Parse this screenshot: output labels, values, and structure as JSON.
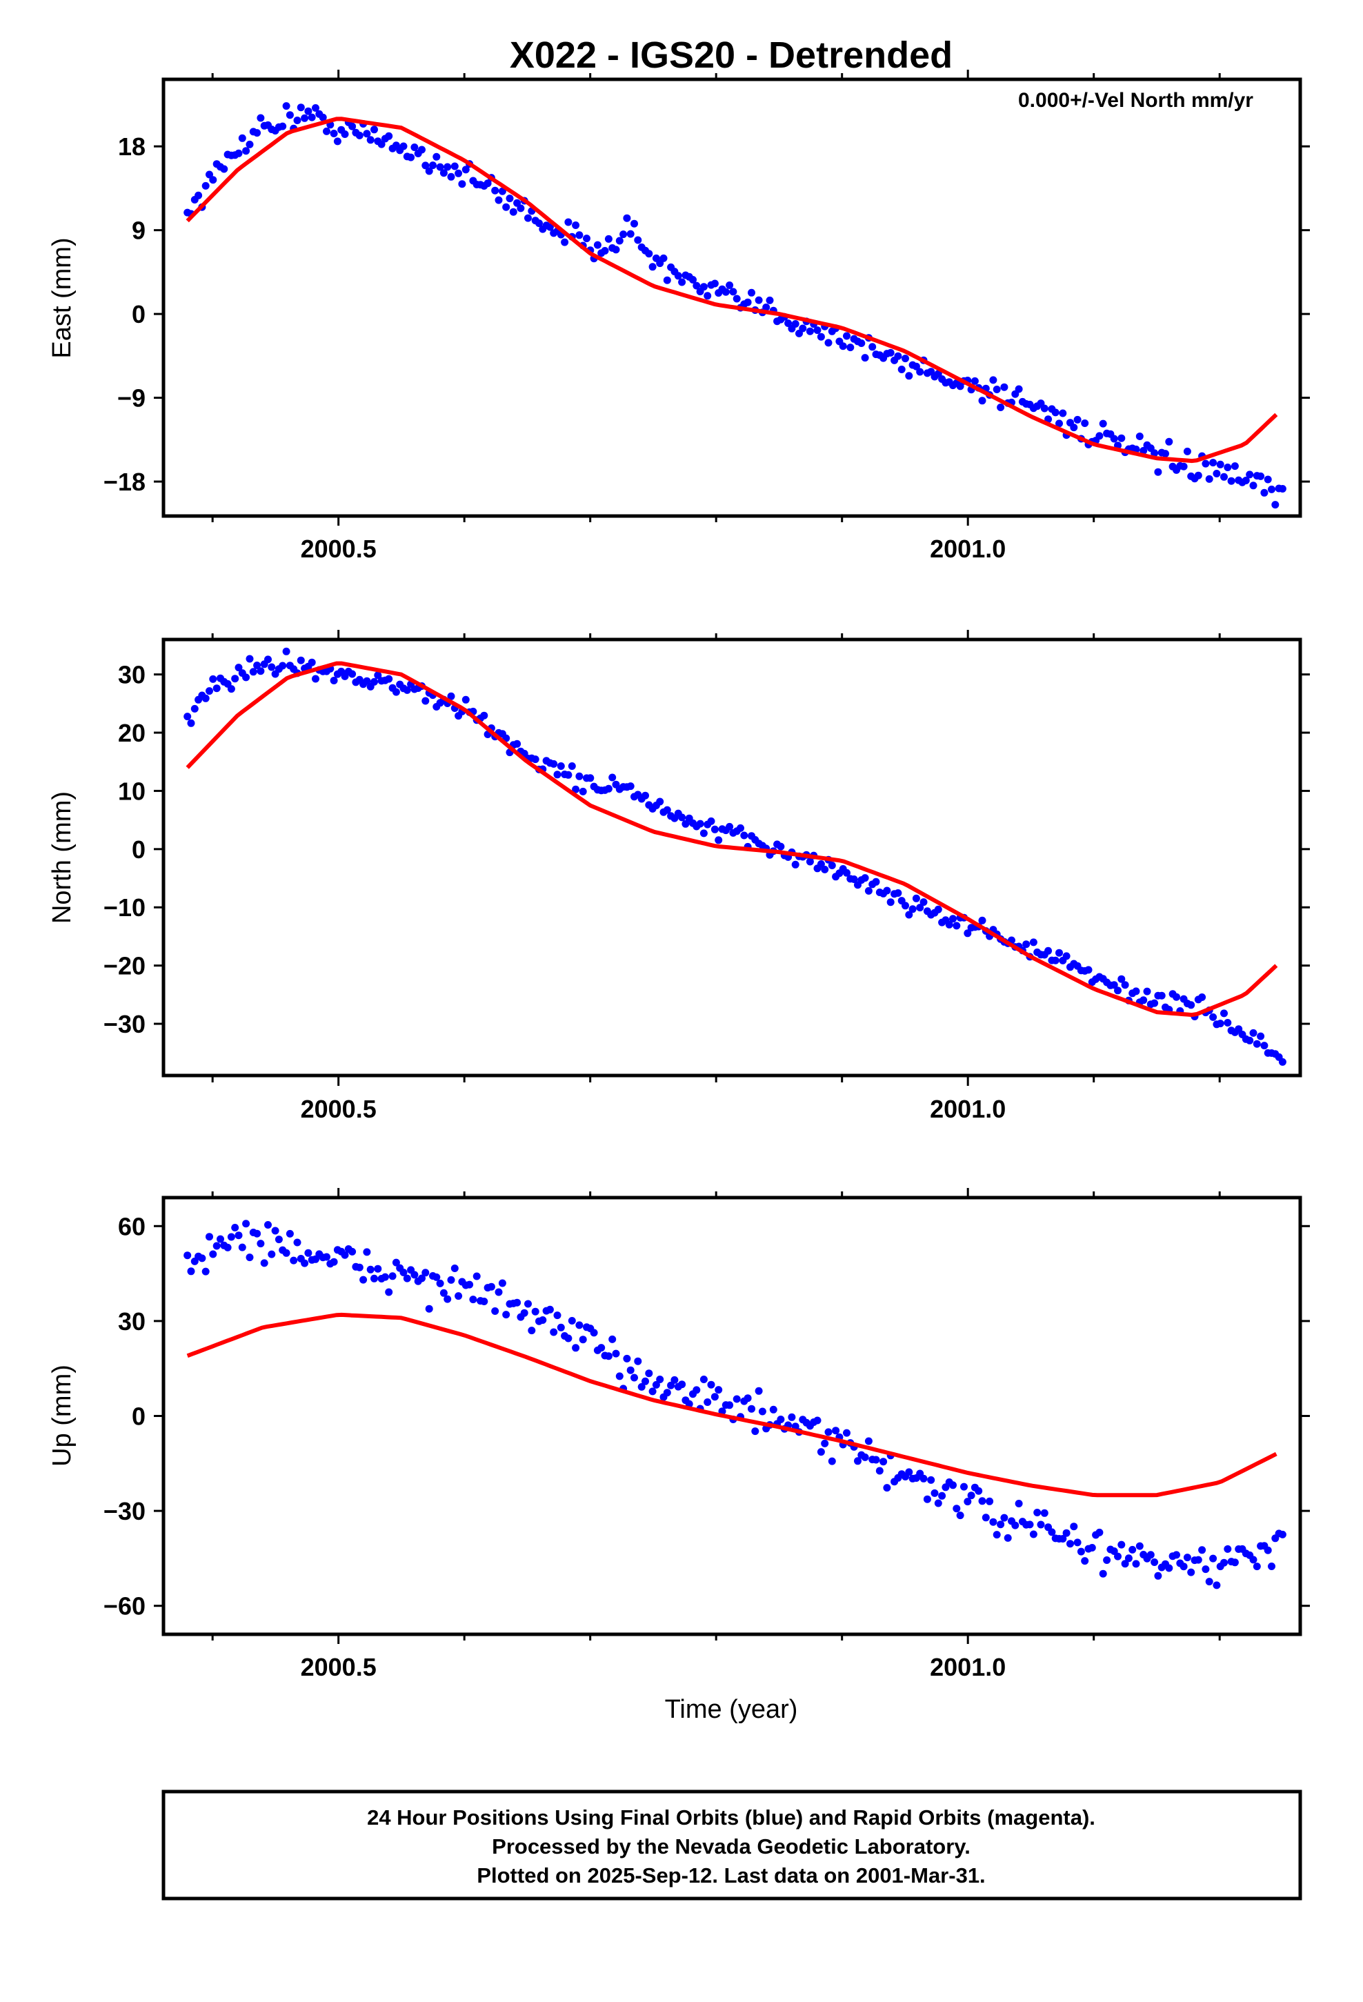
{
  "title": "X022 - IGS20 - Detrended",
  "xlabel": "Time (year)",
  "footer": [
    "24 Hour Positions Using Final Orbits (blue) and Rapid Orbits (magenta).",
    "Processed by the Nevada Geodetic Laboratory.",
    "Plotted on 2025-Sep-12. Last data on 2001-Mar-31."
  ],
  "colors": {
    "data_points": "#0000ff",
    "model_curve": "#ff0000",
    "frame": "#000000"
  },
  "chart_data": [
    {
      "type": "scatter",
      "ylabel": "East (mm)",
      "annotation": "0.000+/-Vel North mm/yr",
      "xlim": [
        2000.361,
        2001.264
      ],
      "ylim": [
        -21.7,
        25.2
      ],
      "x_ticks": [
        "2000.5",
        "2001.0"
      ],
      "y_ticks": [
        "18",
        "9",
        "0",
        "-9",
        "-18"
      ],
      "data_shape": {
        "x_start": 2000.38,
        "x_end": 2001.25,
        "n": 300,
        "anchors": [
          [
            2000.38,
            11.0
          ],
          [
            2000.43,
            19.5
          ],
          [
            2000.47,
            21.5
          ],
          [
            2000.5,
            20.0
          ],
          [
            2000.55,
            18.0
          ],
          [
            2000.6,
            15.0
          ],
          [
            2000.65,
            11.0
          ],
          [
            2000.7,
            7.0
          ],
          [
            2000.73,
            9.0
          ],
          [
            2000.75,
            6.0
          ],
          [
            2000.78,
            3.0
          ],
          [
            2000.85,
            0.0
          ],
          [
            2000.9,
            -2.5
          ],
          [
            2000.95,
            -5.5
          ],
          [
            2001.0,
            -7.5
          ],
          [
            2001.05,
            -9.5
          ],
          [
            2001.1,
            -13.0
          ],
          [
            2001.15,
            -15.5
          ],
          [
            2001.2,
            -17.0
          ],
          [
            2001.25,
            -19.5
          ]
        ],
        "noise": 1.4
      },
      "model_curve": {
        "x_start": 2000.38,
        "x_end": 2001.245,
        "n": 220,
        "anchors": [
          [
            2000.38,
            10.0
          ],
          [
            2000.42,
            15.5
          ],
          [
            2000.46,
            19.5
          ],
          [
            2000.5,
            21.0
          ],
          [
            2000.55,
            20.0
          ],
          [
            2000.6,
            16.5
          ],
          [
            2000.65,
            12.0
          ],
          [
            2000.7,
            6.5
          ],
          [
            2000.75,
            3.0
          ],
          [
            2000.8,
            1.0
          ],
          [
            2000.85,
            0.0
          ],
          [
            2000.9,
            -1.5
          ],
          [
            2000.95,
            -4.0
          ],
          [
            2001.0,
            -7.5
          ],
          [
            2001.05,
            -11.0
          ],
          [
            2001.1,
            -14.0
          ],
          [
            2001.15,
            -15.5
          ],
          [
            2001.18,
            -15.8
          ],
          [
            2001.22,
            -14.0
          ],
          [
            2001.245,
            -10.8
          ]
        ]
      }
    },
    {
      "type": "scatter",
      "ylabel": "North (mm)",
      "xlim": [
        2000.361,
        2001.264
      ],
      "ylim": [
        -39.0,
        36.0
      ],
      "x_ticks": [
        "2000.5",
        "2001.0"
      ],
      "y_ticks": [
        "30",
        "20",
        "10",
        "0",
        "-10",
        "-20",
        "-30"
      ],
      "data_shape": {
        "x_start": 2000.38,
        "x_end": 2001.25,
        "n": 300,
        "anchors": [
          [
            2000.38,
            22.0
          ],
          [
            2000.4,
            28.0
          ],
          [
            2000.43,
            31.0
          ],
          [
            2000.47,
            32.0
          ],
          [
            2000.5,
            30.0
          ],
          [
            2000.55,
            28.0
          ],
          [
            2000.6,
            24.0
          ],
          [
            2000.65,
            16.0
          ],
          [
            2000.7,
            11.0
          ],
          [
            2000.73,
            11.0
          ],
          [
            2000.75,
            7.0
          ],
          [
            2000.8,
            3.0
          ],
          [
            2000.85,
            0.0
          ],
          [
            2000.9,
            -4.0
          ],
          [
            2000.95,
            -9.0
          ],
          [
            2001.0,
            -13.0
          ],
          [
            2001.05,
            -17.0
          ],
          [
            2001.1,
            -22.0
          ],
          [
            2001.15,
            -26.0
          ],
          [
            2001.18,
            -27.0
          ],
          [
            2001.2,
            -29.0
          ],
          [
            2001.25,
            -36.0
          ]
        ],
        "noise": 1.6
      },
      "model_curve": {
        "x_start": 2000.38,
        "x_end": 2001.245,
        "n": 220,
        "anchors": [
          [
            2000.38,
            14.0
          ],
          [
            2000.42,
            23.0
          ],
          [
            2000.46,
            29.5
          ],
          [
            2000.5,
            32.0
          ],
          [
            2000.55,
            30.0
          ],
          [
            2000.6,
            24.0
          ],
          [
            2000.65,
            15.0
          ],
          [
            2000.7,
            7.5
          ],
          [
            2000.75,
            3.0
          ],
          [
            2000.8,
            0.5
          ],
          [
            2000.85,
            -0.5
          ],
          [
            2000.9,
            -2.0
          ],
          [
            2000.95,
            -6.0
          ],
          [
            2001.0,
            -12.0
          ],
          [
            2001.05,
            -18.5
          ],
          [
            2001.1,
            -24.0
          ],
          [
            2001.15,
            -28.0
          ],
          [
            2001.18,
            -28.5
          ],
          [
            2001.22,
            -25.0
          ],
          [
            2001.245,
            -20.0
          ]
        ]
      }
    },
    {
      "type": "scatter",
      "ylabel": "Up (mm)",
      "xlim": [
        2000.361,
        2001.264
      ],
      "ylim": [
        -69.0,
        69.0
      ],
      "x_ticks": [
        "2000.5",
        "2001.0"
      ],
      "y_ticks": [
        "60",
        "30",
        "0",
        "-30",
        "-60"
      ],
      "data_shape": {
        "x_start": 2000.38,
        "x_end": 2001.25,
        "n": 300,
        "anchors": [
          [
            2000.38,
            47.0
          ],
          [
            2000.42,
            57.0
          ],
          [
            2000.46,
            54.0
          ],
          [
            2000.5,
            48.0
          ],
          [
            2000.55,
            45.0
          ],
          [
            2000.6,
            40.0
          ],
          [
            2000.65,
            33.0
          ],
          [
            2000.7,
            22.0
          ],
          [
            2000.75,
            12.0
          ],
          [
            2000.8,
            5.0
          ],
          [
            2000.85,
            -2.0
          ],
          [
            2000.9,
            -10.0
          ],
          [
            2000.95,
            -18.0
          ],
          [
            2001.0,
            -28.0
          ],
          [
            2001.05,
            -35.0
          ],
          [
            2001.1,
            -42.0
          ],
          [
            2001.15,
            -46.0
          ],
          [
            2001.2,
            -48.0
          ],
          [
            2001.25,
            -40.0
          ]
        ],
        "noise": 6.0
      },
      "model_curve": {
        "x_start": 2000.38,
        "x_end": 2001.245,
        "n": 220,
        "anchors": [
          [
            2000.38,
            19.0
          ],
          [
            2000.44,
            28.0
          ],
          [
            2000.5,
            32.0
          ],
          [
            2000.55,
            31.0
          ],
          [
            2000.6,
            25.5
          ],
          [
            2000.65,
            18.5
          ],
          [
            2000.7,
            11.0
          ],
          [
            2000.75,
            5.0
          ],
          [
            2000.8,
            0.5
          ],
          [
            2000.85,
            -3.5
          ],
          [
            2000.9,
            -8.0
          ],
          [
            2000.95,
            -13.0
          ],
          [
            2001.0,
            -18.0
          ],
          [
            2001.05,
            -22.0
          ],
          [
            2001.1,
            -25.0
          ],
          [
            2001.15,
            -25.0
          ],
          [
            2001.2,
            -21.0
          ],
          [
            2001.245,
            -12.0
          ]
        ]
      }
    }
  ]
}
